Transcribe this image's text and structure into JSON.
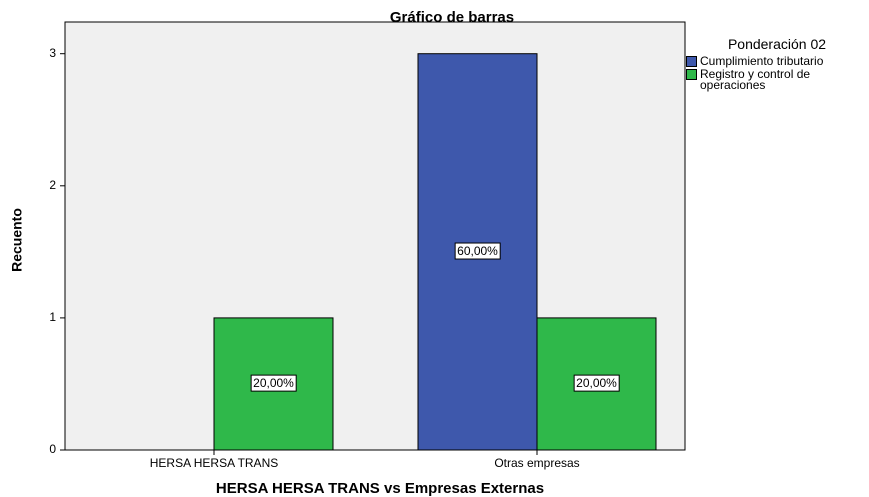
{
  "chart_data": {
    "type": "bar",
    "title": "Gráfico de barras",
    "x_label": "HERSA HERSA TRANS vs Empresas Externas",
    "y_label": "Recuento",
    "legend_title": "Ponderación 02",
    "categories": [
      "HERSA HERSA TRANS",
      "Otras empresas"
    ],
    "series": [
      {
        "name": "Cumplimiento tributario",
        "color": "#3e58ac",
        "values": [
          0,
          3
        ],
        "percent_labels": [
          null,
          "60,00%"
        ]
      },
      {
        "name": "Registro y control de operaciones",
        "color": "#2fb84a",
        "values": [
          1,
          1
        ],
        "percent_labels": [
          "20,00%",
          "20,00%"
        ]
      }
    ],
    "ylim": [
      0,
      3.24
    ],
    "yticks": [
      0,
      1,
      2,
      3
    ]
  }
}
